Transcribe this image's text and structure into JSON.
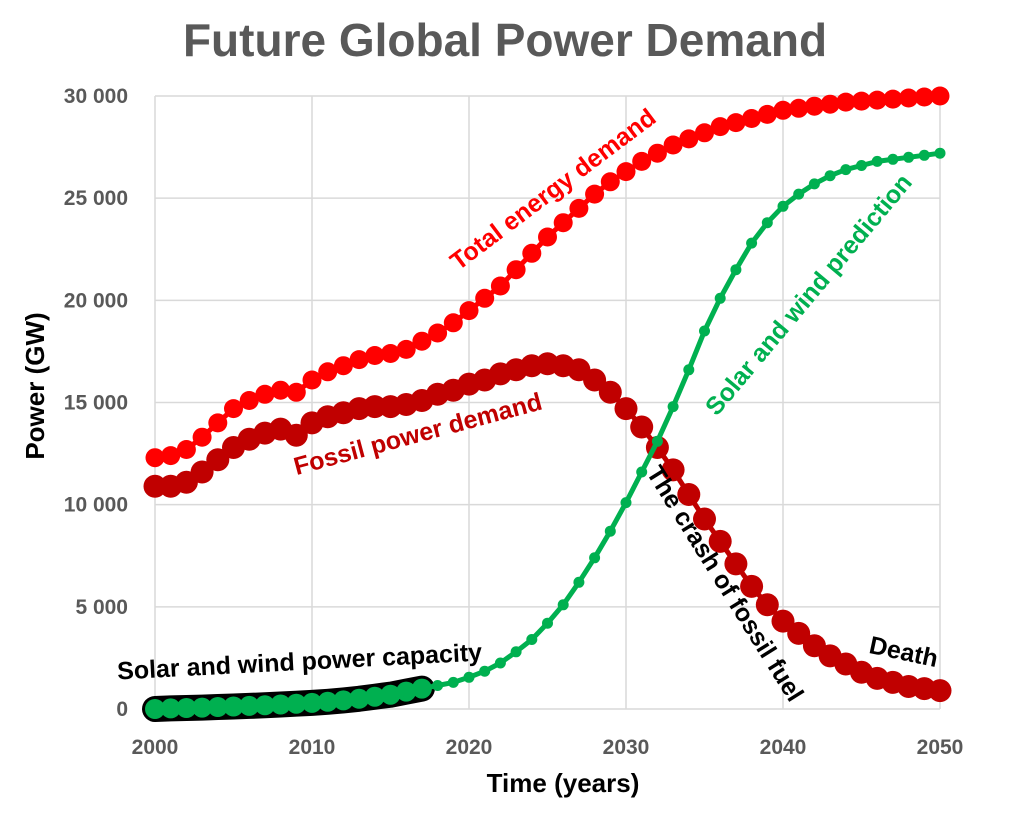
{
  "colors": {
    "total": "#ff0000",
    "fossil": "#c00000",
    "solar": "#00b050",
    "capacity_outline": "#000000",
    "grid": "#d9d9d9",
    "title": "#595959"
  },
  "chart_data": {
    "type": "line",
    "title": "Future Global Power Demand",
    "xlabel": "Time (years)",
    "ylabel": "Power (GW)",
    "xlim": [
      2000,
      2050
    ],
    "ylim": [
      0,
      30000
    ],
    "grid": true,
    "x_ticks": [
      {
        "value": 2000,
        "label": "2000"
      },
      {
        "value": 2010,
        "label": "2010"
      },
      {
        "value": 2020,
        "label": "2020"
      },
      {
        "value": 2030,
        "label": "2030"
      },
      {
        "value": 2040,
        "label": "2040"
      },
      {
        "value": 2050,
        "label": "2050"
      }
    ],
    "y_ticks": [
      {
        "value": 0,
        "label": "0"
      },
      {
        "value": 5000,
        "label": "5 000"
      },
      {
        "value": 10000,
        "label": "10 000"
      },
      {
        "value": 15000,
        "label": "15 000"
      },
      {
        "value": 20000,
        "label": "20 000"
      },
      {
        "value": 25000,
        "label": "25 000"
      },
      {
        "value": 30000,
        "label": "30 000"
      }
    ],
    "series": [
      {
        "name": "Total energy demand",
        "color_key": "total",
        "x": [
          2000,
          2001,
          2002,
          2003,
          2004,
          2005,
          2006,
          2007,
          2008,
          2009,
          2010,
          2011,
          2012,
          2013,
          2014,
          2015,
          2016,
          2017,
          2018,
          2019,
          2020,
          2021,
          2022,
          2023,
          2024,
          2025,
          2026,
          2027,
          2028,
          2029,
          2030,
          2031,
          2032,
          2033,
          2034,
          2035,
          2036,
          2037,
          2038,
          2039,
          2040,
          2041,
          2042,
          2043,
          2044,
          2045,
          2046,
          2047,
          2048,
          2049,
          2050
        ],
        "y": [
          12300,
          12400,
          12700,
          13300,
          14000,
          14700,
          15100,
          15400,
          15600,
          15500,
          16100,
          16500,
          16800,
          17100,
          17300,
          17400,
          17600,
          18000,
          18400,
          18900,
          19500,
          20100,
          20700,
          21500,
          22300,
          23100,
          23800,
          24500,
          25200,
          25800,
          26300,
          26800,
          27200,
          27600,
          27900,
          28200,
          28500,
          28700,
          28900,
          29100,
          29300,
          29400,
          29500,
          29600,
          29700,
          29750,
          29800,
          29850,
          29900,
          29950,
          30000
        ]
      },
      {
        "name": "Fossil power demand",
        "color_key": "fossil",
        "x": [
          2000,
          2001,
          2002,
          2003,
          2004,
          2005,
          2006,
          2007,
          2008,
          2009,
          2010,
          2011,
          2012,
          2013,
          2014,
          2015,
          2016,
          2017,
          2018,
          2019,
          2020,
          2021,
          2022,
          2023,
          2024,
          2025,
          2026,
          2027,
          2028,
          2029,
          2030,
          2031,
          2032,
          2033,
          2034,
          2035,
          2036,
          2037,
          2038,
          2039,
          2040,
          2041,
          2042,
          2043,
          2044,
          2045,
          2046,
          2047,
          2048,
          2049,
          2050
        ],
        "y": [
          10900,
          10900,
          11100,
          11600,
          12200,
          12800,
          13200,
          13500,
          13700,
          13400,
          14000,
          14300,
          14500,
          14700,
          14800,
          14800,
          14900,
          15100,
          15400,
          15600,
          15900,
          16100,
          16400,
          16600,
          16800,
          16900,
          16800,
          16600,
          16100,
          15500,
          14700,
          13800,
          12800,
          11700,
          10500,
          9300,
          8200,
          7100,
          6000,
          5100,
          4300,
          3700,
          3100,
          2600,
          2200,
          1800,
          1500,
          1300,
          1100,
          1000,
          900
        ]
      },
      {
        "name": "Solar and wind prediction",
        "color_key": "solar",
        "x": [
          2000,
          2001,
          2002,
          2003,
          2004,
          2005,
          2006,
          2007,
          2008,
          2009,
          2010,
          2011,
          2012,
          2013,
          2014,
          2015,
          2016,
          2017,
          2018,
          2019,
          2020,
          2021,
          2022,
          2023,
          2024,
          2025,
          2026,
          2027,
          2028,
          2029,
          2030,
          2031,
          2032,
          2033,
          2034,
          2035,
          2036,
          2037,
          2038,
          2039,
          2040,
          2041,
          2042,
          2043,
          2044,
          2045,
          2046,
          2047,
          2048,
          2049,
          2050
        ],
        "y": [
          0,
          30,
          50,
          70,
          100,
          120,
          150,
          180,
          220,
          260,
          300,
          350,
          420,
          500,
          600,
          700,
          850,
          1000,
          1150,
          1300,
          1550,
          1850,
          2250,
          2800,
          3400,
          4200,
          5100,
          6200,
          7400,
          8700,
          10100,
          11600,
          13100,
          14800,
          16600,
          18500,
          20100,
          21500,
          22800,
          23800,
          24600,
          25200,
          25700,
          26100,
          26400,
          26600,
          26800,
          26900,
          27000,
          27100,
          27200
        ]
      },
      {
        "name": "Solar and wind power capacity",
        "color_key": "solar",
        "outline_key": "capacity_outline",
        "x": [
          2000,
          2001,
          2002,
          2003,
          2004,
          2005,
          2006,
          2007,
          2008,
          2009,
          2010,
          2011,
          2012,
          2013,
          2014,
          2015,
          2016,
          2017
        ],
        "y": [
          0,
          30,
          50,
          70,
          100,
          120,
          150,
          180,
          220,
          260,
          300,
          350,
          420,
          500,
          600,
          700,
          850,
          1000
        ]
      }
    ],
    "annotations": [
      {
        "text": "Total energy demand",
        "color_key": "total"
      },
      {
        "text": "Fossil power demand",
        "color_key": "fossil"
      },
      {
        "text": "Solar and wind prediction",
        "color_key": "solar"
      },
      {
        "text": "The crash of fossil fuel",
        "color_key": "capacity_outline"
      },
      {
        "text": "Death",
        "color_key": "capacity_outline"
      },
      {
        "text": "Solar and wind power capacity",
        "color_key": "capacity_outline"
      }
    ]
  }
}
